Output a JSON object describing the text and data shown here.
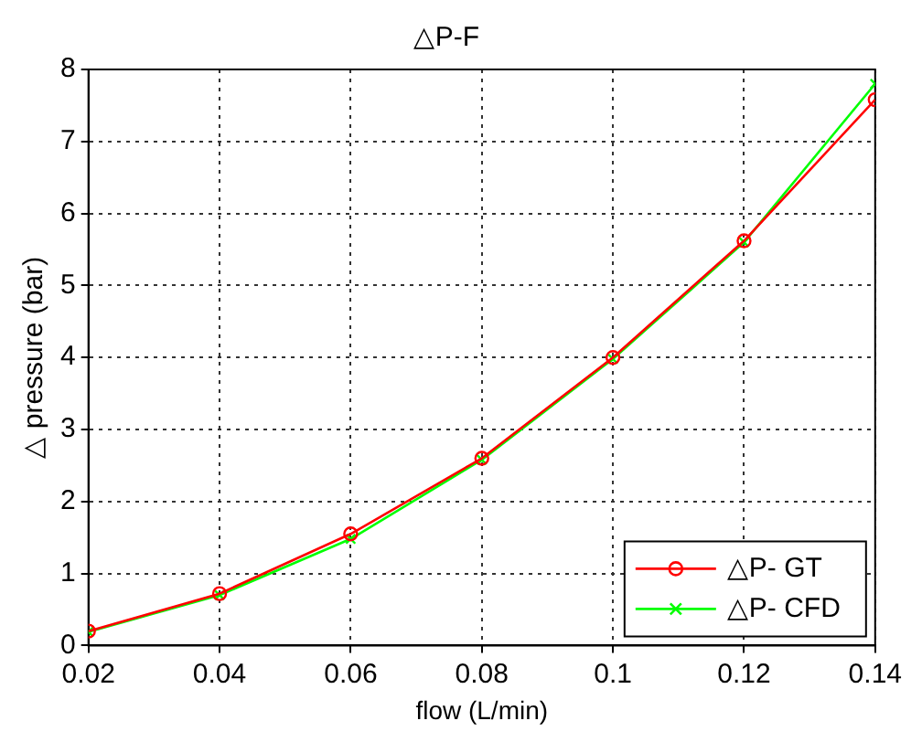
{
  "chart_data": {
    "type": "line",
    "title": "△P-F",
    "xlabel": "flow (L/min)",
    "ylabel": "△ pressure (bar)",
    "x": [
      0.02,
      0.04,
      0.06,
      0.08,
      0.1,
      0.12,
      0.14
    ],
    "series": [
      {
        "name": "△P- GT",
        "color": "#ff0000",
        "marker": "circle",
        "values": [
          0.2,
          0.72,
          1.55,
          2.6,
          4.0,
          5.62,
          7.58
        ]
      },
      {
        "name": "△P- CFD",
        "color": "#00ff00",
        "marker": "cross",
        "values": [
          0.19,
          0.7,
          1.48,
          2.58,
          3.98,
          5.6,
          7.8
        ]
      }
    ],
    "xlim": [
      0.02,
      0.14
    ],
    "xticks": [
      0.02,
      0.04,
      0.06,
      0.08,
      0.1,
      0.12,
      0.14
    ],
    "ylim": [
      0,
      8
    ],
    "yticks": [
      0,
      1,
      2,
      3,
      4,
      5,
      6,
      7,
      8
    ],
    "grid": true,
    "legend": "bottom right",
    "line_style": "solid"
  }
}
